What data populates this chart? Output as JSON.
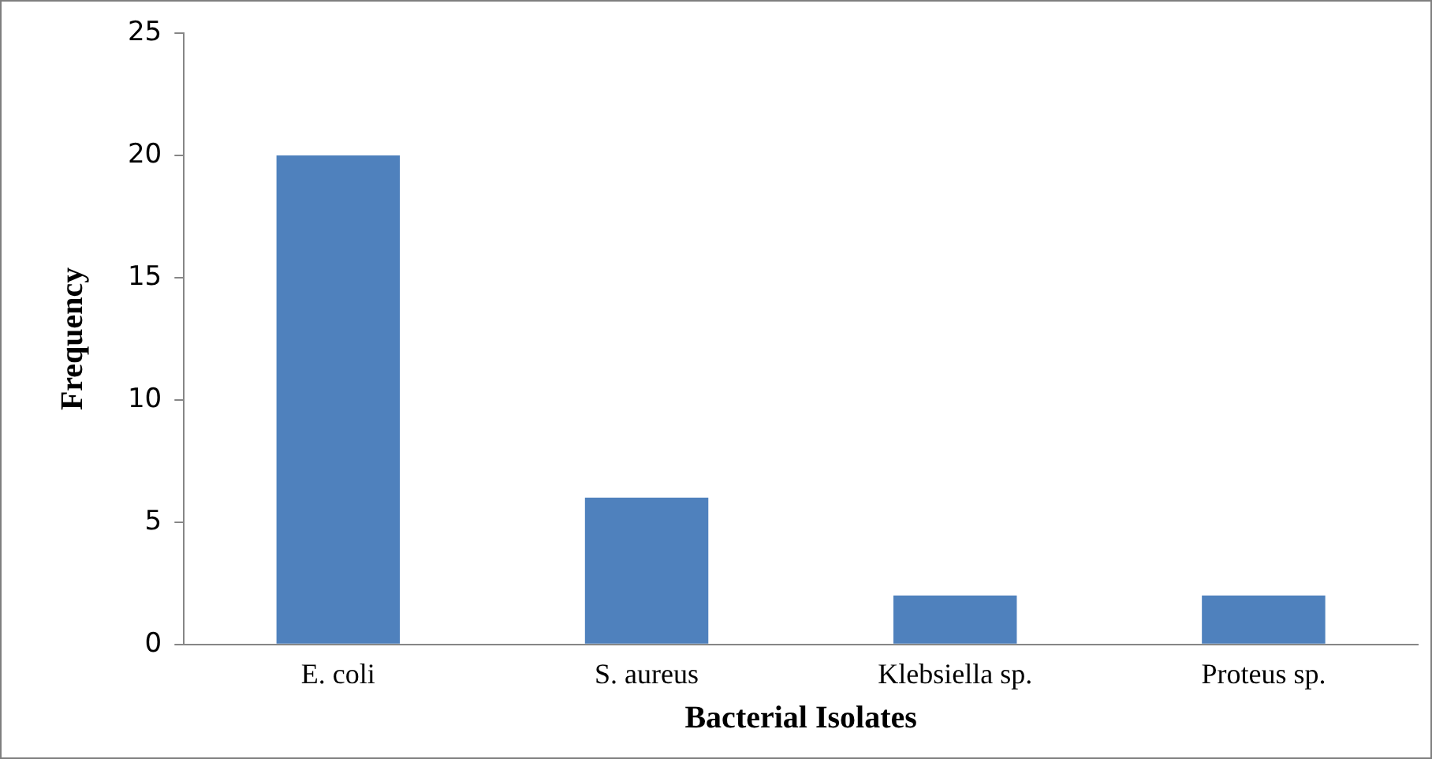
{
  "chart_data": {
    "type": "bar",
    "xlabel": "Bacterial Isolates",
    "ylabel": "Frequency",
    "categories": [
      "E. coli",
      "S. aureus",
      "Klebsiella sp.",
      "Proteus sp."
    ],
    "values": [
      20,
      6,
      2,
      2
    ],
    "color": "#4f81bd",
    "ylim": [
      0,
      25
    ],
    "yticks": [
      0,
      5,
      10,
      15,
      20,
      25
    ],
    "grid": false,
    "legend": false
  }
}
